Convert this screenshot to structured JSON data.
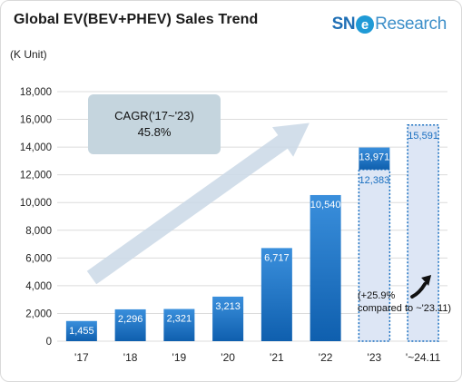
{
  "header": {
    "title": "Global EV(BEV+PHEV)  Sales Trend",
    "logo_sn": "SN",
    "logo_e": "e",
    "logo_rest": "Research",
    "unit": "(K Unit)"
  },
  "annotation": {
    "cagr_line1": "CAGR('17~'23)",
    "cagr_line2": "45.8%",
    "note_line1": "(+25.9%",
    "note_line2": "compared to ~'23.11)"
  },
  "colors": {
    "bar_top": "#3a8fdc",
    "bar_bottom": "#0f5fae",
    "projection_fill": "#dde6f5",
    "projection_border": "#1a6fc0",
    "projection_text": "#1a6fc0",
    "arrow": "#cad8e6",
    "gridline": "#dcdcdc"
  },
  "chart_data": {
    "type": "bar",
    "title": "Global EV(BEV+PHEV)  Sales Trend",
    "ylabel": "(K Unit)",
    "xlabel": "",
    "ylim": [
      0,
      18000
    ],
    "y_ticks": [
      "0",
      "2,000",
      "4,000",
      "6,000",
      "8,000",
      "10,000",
      "12,000",
      "14,000",
      "16,000",
      "18,000"
    ],
    "y_tick_values": [
      0,
      2000,
      4000,
      6000,
      8000,
      10000,
      12000,
      14000,
      16000,
      18000
    ],
    "grid": true,
    "categories": [
      "'17",
      "'18",
      "'19",
      "'20",
      "'21",
      "'22",
      "'23",
      "'~24.11"
    ],
    "series": [
      {
        "values": [
          1455,
          2296,
          2321,
          3213,
          6717,
          10540,
          13971,
          null
        ],
        "labels": [
          "1,455",
          "2,296",
          "2,321",
          "3,213",
          "6,717",
          "10,540",
          "13,971",
          ""
        ]
      },
      {
        "values": [
          null,
          null,
          null,
          null,
          null,
          null,
          12383,
          15591
        ],
        "labels": [
          "",
          "",
          "",
          "",
          "",
          "",
          "12,383",
          "15,591"
        ]
      }
    ]
  }
}
